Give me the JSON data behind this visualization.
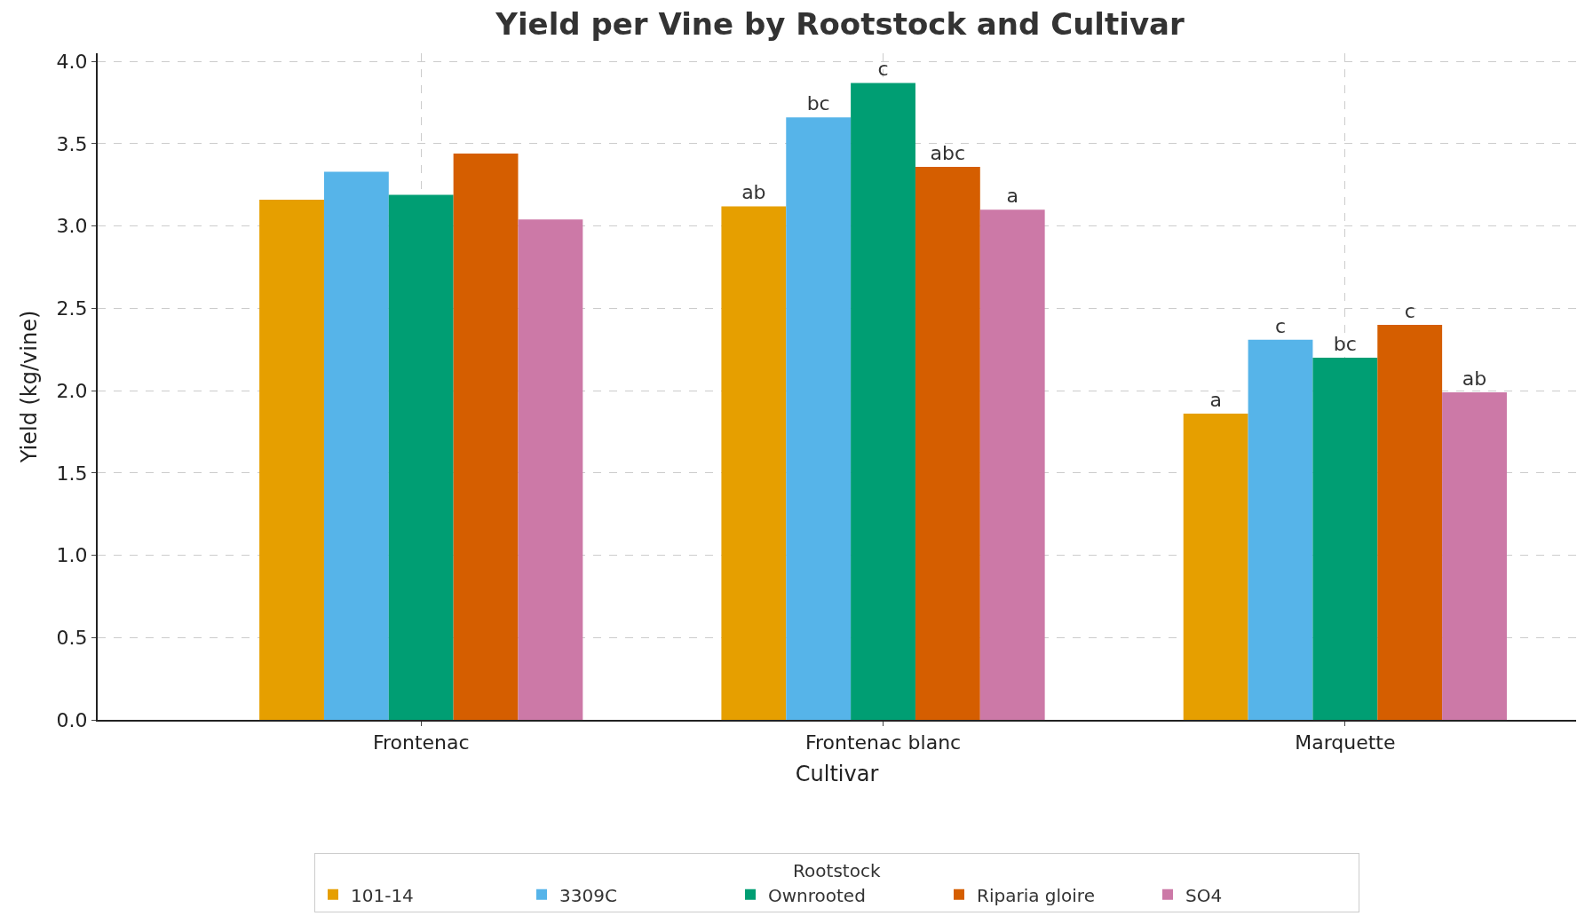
{
  "chart_data": {
    "type": "bar",
    "title": "Yield per Vine by Rootstock and Cultivar",
    "xlabel": "Cultivar",
    "ylabel": "Yield (kg/vine)",
    "legend_title": "Rootstock",
    "categories": [
      "Frontenac",
      "Frontenac blanc",
      "Marquette"
    ],
    "series": [
      {
        "name": "101-14",
        "color": "#e69f00",
        "values": [
          3.16,
          3.12,
          1.86
        ],
        "value_labels": [
          null,
          "ab",
          "a"
        ]
      },
      {
        "name": "3309C",
        "color": "#56b4e9",
        "values": [
          3.33,
          3.66,
          2.31
        ],
        "value_labels": [
          null,
          "bc",
          "c"
        ]
      },
      {
        "name": "Ownrooted",
        "color": "#009e73",
        "values": [
          3.19,
          3.87,
          2.2
        ],
        "value_labels": [
          null,
          "c",
          "bc"
        ]
      },
      {
        "name": "Riparia gloire",
        "color": "#d55e00",
        "values": [
          3.44,
          3.36,
          2.4
        ],
        "value_labels": [
          null,
          "abc",
          "c"
        ]
      },
      {
        "name": "SO4",
        "color": "#cc79a7",
        "values": [
          3.04,
          3.1,
          1.99
        ],
        "value_labels": [
          null,
          "a",
          "ab"
        ]
      }
    ],
    "ylim": [
      0,
      4.05
    ],
    "yticks": [
      {
        "value": 0,
        "label": "0.0"
      },
      {
        "value": 0.5,
        "label": "0.5"
      },
      {
        "value": 1,
        "label": "1.0"
      },
      {
        "value": 1.5,
        "label": "1.5"
      },
      {
        "value": 2,
        "label": "2.0"
      },
      {
        "value": 2.5,
        "label": "2.5"
      },
      {
        "value": 3,
        "label": "3.0"
      },
      {
        "value": 3.5,
        "label": "3.5"
      },
      {
        "value": 4,
        "label": "4.0"
      }
    ],
    "grid": true,
    "legend": "bottom"
  }
}
